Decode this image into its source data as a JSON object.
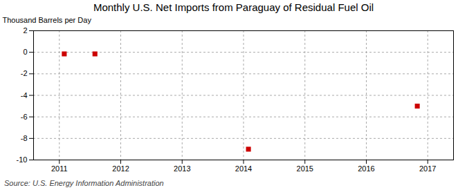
{
  "chart_data": {
    "type": "scatter",
    "title": "Monthly U.S. Net Imports from Paraguay of Residual Fuel Oil",
    "ylabel": "Thousand Barrels per Day",
    "annotations": [
      "Source: U.S. Energy Information Administration"
    ],
    "x": [
      2011.08,
      2011.58,
      2014.08,
      2016.83
    ],
    "values": [
      -0.15,
      -0.15,
      -9.0,
      -5.0
    ],
    "color": "#cc0000",
    "marker": "square",
    "xlim": [
      2010.58,
      2017.42
    ],
    "ylim": [
      -10,
      2
    ],
    "xticks": [
      2011,
      2012,
      2013,
      2014,
      2015,
      2016,
      2017
    ],
    "yticks": [
      -10,
      -8,
      -6,
      -4,
      -2,
      0,
      2
    ],
    "grid": true
  }
}
